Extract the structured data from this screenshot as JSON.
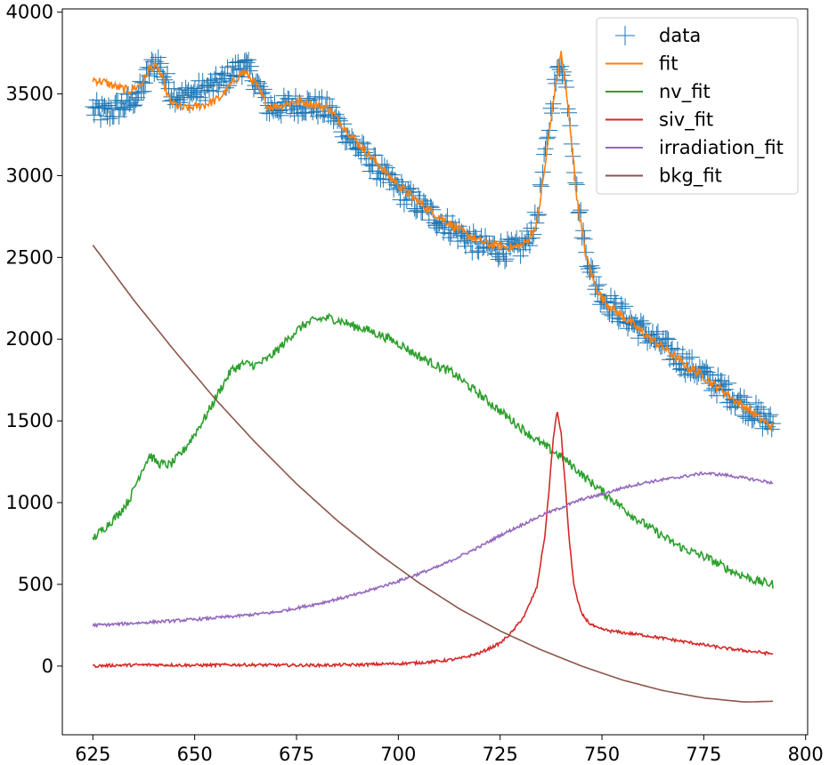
{
  "chart_data": {
    "type": "line",
    "title": "",
    "xlabel": "",
    "ylabel": "",
    "xlim": [
      617.5,
      800.5
    ],
    "ylim": [
      -420,
      4020
    ],
    "x_ticks": [
      625,
      650,
      675,
      700,
      725,
      750,
      775,
      800
    ],
    "y_ticks": [
      0,
      500,
      1000,
      1500,
      2000,
      2500,
      3000,
      3500,
      4000
    ],
    "grid": false,
    "legend_position": "top-right",
    "series": [
      {
        "name": "data",
        "style": "marker-plus",
        "color": "#1f77b4",
        "x": [
          625,
          628,
          631,
          634,
          637,
          639,
          641,
          644,
          647,
          650,
          653,
          656,
          659,
          662,
          665,
          668,
          671,
          674,
          677,
          680,
          683,
          686,
          689,
          692,
          695,
          698,
          701,
          704,
          707,
          710,
          713,
          716,
          719,
          722,
          725,
          728,
          731,
          734,
          736,
          738,
          740,
          742,
          744,
          746,
          748,
          750,
          753,
          756,
          759,
          762,
          765,
          768,
          771,
          774,
          777,
          780,
          783,
          786,
          789,
          792
        ],
        "y": [
          3400,
          3380,
          3410,
          3450,
          3520,
          3650,
          3700,
          3520,
          3480,
          3510,
          3530,
          3560,
          3620,
          3680,
          3580,
          3420,
          3420,
          3430,
          3440,
          3420,
          3400,
          3300,
          3200,
          3120,
          3040,
          2960,
          2900,
          2840,
          2780,
          2730,
          2680,
          2630,
          2580,
          2560,
          2550,
          2540,
          2570,
          2730,
          3100,
          3500,
          3720,
          3400,
          2850,
          2550,
          2360,
          2260,
          2190,
          2130,
          2070,
          2010,
          1960,
          1900,
          1840,
          1800,
          1740,
          1690,
          1630,
          1580,
          1520,
          1470
        ]
      },
      {
        "name": "fit",
        "style": "line",
        "color": "#ff7f0e",
        "x": [
          625,
          628,
          631,
          634,
          637,
          639,
          641,
          644,
          647,
          650,
          653,
          656,
          659,
          662,
          665,
          668,
          671,
          674,
          677,
          680,
          683,
          686,
          689,
          692,
          695,
          698,
          701,
          704,
          707,
          710,
          713,
          716,
          719,
          722,
          725,
          728,
          731,
          734,
          736,
          738,
          740,
          742,
          744,
          746,
          748,
          750,
          753,
          756,
          759,
          762,
          765,
          768,
          771,
          774,
          777,
          780,
          783,
          786,
          789,
          792
        ],
        "y": [
          3590,
          3570,
          3540,
          3520,
          3560,
          3660,
          3660,
          3450,
          3410,
          3420,
          3440,
          3470,
          3560,
          3640,
          3560,
          3420,
          3430,
          3450,
          3450,
          3430,
          3410,
          3320,
          3230,
          3150,
          3070,
          2990,
          2920,
          2860,
          2800,
          2750,
          2700,
          2650,
          2610,
          2580,
          2570,
          2560,
          2580,
          2700,
          3050,
          3450,
          3760,
          3350,
          2830,
          2520,
          2350,
          2250,
          2180,
          2120,
          2060,
          2000,
          1950,
          1890,
          1830,
          1790,
          1730,
          1680,
          1620,
          1570,
          1510,
          1460
        ]
      },
      {
        "name": "nv_fit",
        "style": "line",
        "color": "#2ca02c",
        "x": [
          625,
          628,
          631,
          634,
          637,
          639,
          641,
          644,
          647,
          650,
          653,
          656,
          659,
          662,
          665,
          668,
          671,
          674,
          677,
          680,
          683,
          686,
          689,
          692,
          695,
          698,
          701,
          704,
          707,
          710,
          713,
          716,
          719,
          722,
          725,
          728,
          731,
          734,
          737,
          740,
          743,
          746,
          749,
          752,
          755,
          758,
          761,
          764,
          767,
          770,
          773,
          776,
          779,
          782,
          785,
          788,
          792
        ],
        "y": [
          780,
          850,
          920,
          1020,
          1200,
          1290,
          1240,
          1230,
          1310,
          1420,
          1540,
          1680,
          1810,
          1850,
          1840,
          1880,
          1950,
          2030,
          2090,
          2120,
          2130,
          2110,
          2080,
          2060,
          2030,
          2000,
          1960,
          1910,
          1870,
          1830,
          1800,
          1740,
          1680,
          1620,
          1560,
          1500,
          1440,
          1380,
          1330,
          1280,
          1220,
          1150,
          1090,
          1030,
          970,
          910,
          860,
          810,
          760,
          720,
          690,
          660,
          620,
          580,
          550,
          520,
          500
        ]
      },
      {
        "name": "siv_fit",
        "style": "line",
        "color": "#d62728",
        "x": [
          625,
          630,
          640,
          650,
          660,
          670,
          680,
          690,
          700,
          705,
          710,
          715,
          720,
          725,
          728,
          731,
          734,
          736,
          737,
          738,
          739,
          740,
          741,
          742,
          743,
          744,
          745,
          747,
          749,
          752,
          755,
          760,
          765,
          770,
          775,
          780,
          785,
          790,
          792
        ],
        "y": [
          0,
          5,
          8,
          5,
          8,
          6,
          5,
          8,
          15,
          20,
          30,
          45,
          80,
          140,
          210,
          310,
          480,
          800,
          1080,
          1380,
          1560,
          1420,
          1100,
          760,
          520,
          400,
          320,
          260,
          230,
          215,
          205,
          190,
          170,
          150,
          130,
          110,
          95,
          80,
          75
        ]
      },
      {
        "name": "irradiation_fit",
        "style": "line",
        "color": "#9467bd",
        "x": [
          625,
          630,
          640,
          650,
          660,
          670,
          680,
          690,
          700,
          710,
          720,
          725,
          730,
          735,
          740,
          745,
          750,
          755,
          760,
          765,
          770,
          775,
          780,
          785,
          790,
          792
        ],
        "y": [
          250,
          255,
          270,
          285,
          305,
          330,
          380,
          440,
          520,
          610,
          730,
          800,
          860,
          920,
          970,
          1020,
          1050,
          1090,
          1120,
          1140,
          1160,
          1180,
          1170,
          1150,
          1130,
          1120
        ]
      },
      {
        "name": "bkg_fit",
        "style": "line",
        "color": "#8c564b",
        "x": [
          625,
          635,
          645,
          655,
          665,
          675,
          685,
          695,
          705,
          715,
          725,
          735,
          745,
          755,
          765,
          775,
          785,
          792
        ],
        "y": [
          2575,
          2240,
          1930,
          1635,
          1365,
          1115,
          890,
          690,
          510,
          350,
          215,
          100,
          0,
          -85,
          -150,
          -195,
          -220,
          -215
        ]
      }
    ]
  }
}
